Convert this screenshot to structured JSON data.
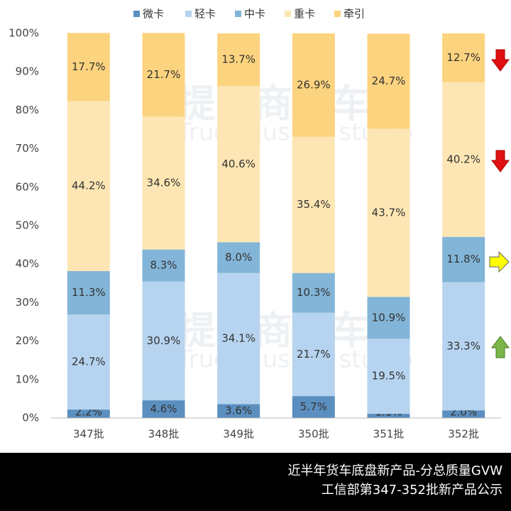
{
  "chart_data": {
    "type": "stacked_bar_100",
    "categories": [
      "347批",
      "348批",
      "349批",
      "350批",
      "351批",
      "352批"
    ],
    "series": [
      {
        "name": "微卡",
        "color": "#5b8fbf",
        "values": [
          2.2,
          4.6,
          3.6,
          5.7,
          1.1,
          2.0
        ],
        "value_labels": [
          "2.2%",
          "4.6%",
          "3.6%",
          "5.7%",
          "1.1%",
          "2.0%"
        ]
      },
      {
        "name": "轻卡",
        "color": "#b6d4ef",
        "values": [
          24.7,
          30.9,
          34.1,
          21.7,
          19.5,
          33.3
        ],
        "value_labels": [
          "24.7%",
          "30.9%",
          "34.1%",
          "21.7%",
          "19.5%",
          "33.3%"
        ]
      },
      {
        "name": "中卡",
        "color": "#82b5d8",
        "values": [
          11.3,
          8.3,
          8.0,
          10.3,
          10.9,
          11.8
        ],
        "value_labels": [
          "11.3%",
          "8.3%",
          "8.0%",
          "10.3%",
          "10.9%",
          "11.8%"
        ]
      },
      {
        "name": "重卡",
        "color": "#fde6b3",
        "values": [
          44.2,
          34.6,
          40.6,
          35.4,
          43.7,
          40.2
        ],
        "value_labels": [
          "44.2%",
          "34.6%",
          "40.6%",
          "35.4%",
          "43.7%",
          "40.2%"
        ]
      },
      {
        "name": "牵引",
        "color": "#fcd37e",
        "values": [
          17.7,
          21.7,
          13.7,
          26.9,
          24.7,
          12.7
        ],
        "value_labels": [
          "17.7%",
          "21.7%",
          "13.7%",
          "26.9%",
          "24.7%",
          "12.7%"
        ]
      }
    ],
    "ylim": [
      0,
      100
    ],
    "yticks": [
      {
        "value": 0,
        "label": "0%"
      },
      {
        "value": 10,
        "label": "10%"
      },
      {
        "value": 20,
        "label": "20%"
      },
      {
        "value": 30,
        "label": "30%"
      },
      {
        "value": 40,
        "label": "40%"
      },
      {
        "value": 50,
        "label": "50%"
      },
      {
        "value": 60,
        "label": "60%"
      },
      {
        "value": 70,
        "label": "70%"
      },
      {
        "value": 80,
        "label": "80%"
      },
      {
        "value": 90,
        "label": "90%"
      },
      {
        "value": 100,
        "label": "100%"
      }
    ],
    "legend": "top",
    "watermark": [
      "提加商用车",
      "TruckPlus CV studio"
    ],
    "footer": [
      "近半年货车底盘新产品-分总质量GVW",
      "工信部第347-352批新产品公示"
    ]
  }
}
